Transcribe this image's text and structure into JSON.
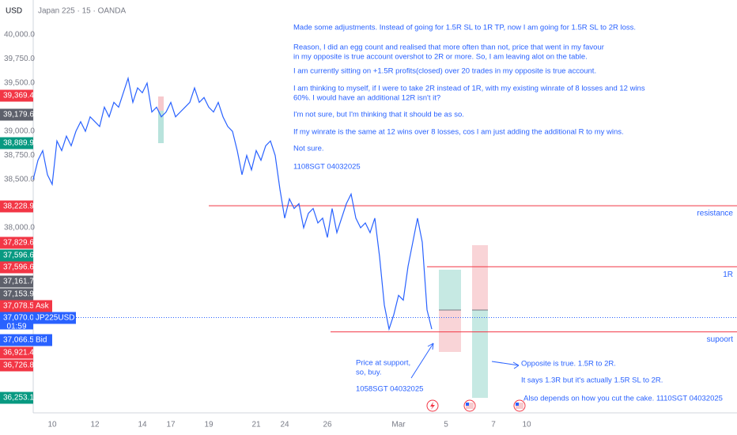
{
  "header": {
    "currency": "USD",
    "symbol": "Japan 225 · 15 · OANDA"
  },
  "chart_data": {
    "type": "line",
    "categories": [
      null,
      null,
      null,
      null,
      "10",
      null,
      null,
      null,
      null,
      null,
      null,
      null,
      null,
      "12",
      null,
      null,
      null,
      null,
      null,
      null,
      null,
      null,
      null,
      "14",
      null,
      null,
      null,
      null,
      null,
      "17",
      null,
      null,
      null,
      null,
      null,
      null,
      null,
      "19",
      null,
      null,
      null,
      null,
      null,
      null,
      null,
      null,
      null,
      "21",
      null,
      null,
      null,
      null,
      null,
      "24",
      null,
      null,
      null,
      null,
      null,
      null,
      null,
      null,
      "26",
      null,
      null,
      null,
      null,
      null,
      null,
      null,
      null,
      null,
      null,
      null,
      null,
      null,
      null,
      "Mar",
      null,
      null,
      null,
      null,
      null,
      null,
      null,
      null,
      null,
      "5",
      null,
      null,
      null,
      null,
      null,
      null,
      null,
      null,
      null,
      "7",
      null,
      null,
      null,
      null,
      null,
      null,
      "10",
      null
    ],
    "series": [
      {
        "name": "JP225USD",
        "color": "#2962ff",
        "values": [
          38500,
          38700,
          38800,
          38550,
          38450,
          38900,
          38800,
          38950,
          38850,
          39000,
          39100,
          39000,
          39150,
          39100,
          39050,
          39250,
          39150,
          39300,
          39250,
          39400,
          39550,
          39300,
          39450,
          39400,
          39500,
          39200,
          39250,
          39150,
          39200,
          39300,
          39150,
          39200,
          39250,
          39300,
          39450,
          39300,
          39350,
          39250,
          39200,
          39300,
          39150,
          39050,
          39000,
          38800,
          38550,
          38750,
          38600,
          38800,
          38700,
          38850,
          38900,
          38750,
          38400,
          38100,
          38300,
          38200,
          38250,
          38000,
          38150,
          38200,
          38050,
          38100,
          37900,
          38200,
          37950,
          38100,
          38250,
          38350,
          38100,
          38000,
          38050,
          37950,
          38100,
          37700,
          37200,
          36950,
          37100,
          37300,
          37250,
          37600,
          37850,
          38100,
          37850,
          37150,
          36950,
          null,
          null,
          null,
          null,
          null,
          null,
          null,
          null,
          null,
          null,
          null,
          null,
          null,
          null,
          null,
          null,
          null,
          null,
          null,
          null,
          null
        ]
      }
    ],
    "ylim": [
      36082,
      40361
    ],
    "yticks": [
      {
        "value": 40000,
        "label": "40,000.0"
      },
      {
        "value": 39750,
        "label": "39,750.0"
      },
      {
        "value": 39500,
        "label": "39,500.0"
      },
      {
        "value": 39000,
        "label": "39,000.0"
      },
      {
        "value": 38750,
        "label": "38,750.0"
      },
      {
        "value": 38500,
        "label": "38,500.0"
      },
      {
        "value": 38000,
        "label": "38,000.0"
      }
    ],
    "price_labels": [
      {
        "label": "39,369.4",
        "color": "#f23645"
      },
      {
        "label": "39,179.6",
        "color": "#5d606b"
      },
      {
        "label": "38,889.9",
        "color": "#089981"
      },
      {
        "label": "38,228.9",
        "color": "#f23645"
      },
      {
        "label": "37,829.6",
        "color": "#f23645"
      },
      {
        "label": "37,596.6",
        "color": "#089981"
      },
      {
        "label": "37,596.6",
        "color": "#f23645"
      },
      {
        "label": "37,161.7",
        "color": "#5d606b"
      },
      {
        "label": "37,153.9",
        "color": "#5d606b"
      },
      {
        "label": "37,078.5",
        "color": "#f23645",
        "tag": "Ask"
      },
      {
        "label": "37,070.0",
        "color": "#2962ff",
        "tag": "JP225USD",
        "sub": "01:59"
      },
      {
        "label": "37,066.5",
        "color": "#2962ff",
        "tag": "Bid"
      },
      {
        "label": "36,921.4",
        "color": "#f23645"
      },
      {
        "label": "36,726.8",
        "color": "#f23645"
      },
      {
        "label": "36,253.1",
        "color": "#089981"
      }
    ],
    "levels": [
      {
        "name": "resistance",
        "value": 38228.9,
        "color": "#f23645"
      },
      {
        "name": "1R",
        "value": 37596.6,
        "color": "#f23645"
      },
      {
        "name": "supoort",
        "value": 36921.4,
        "color": "#f23645"
      }
    ],
    "current_price": 37070.0
  },
  "notes": [
    "Made some adjustments. Instead of going for 1.5R SL to 1R TP, now I am going for 1.5R SL to 2R loss.",
    "Reason, I did an egg count and realised that more often than not, price that went in my favour",
    "in my opposite is true account overshot to 2R or more. So, I am leaving alot on the table.",
    "I am currently sitting on +1.5R profits(closed) over 20 trades in my opposite is true account.",
    "I am thinking to myself, if I were to take 2R instead of 1R, with my existing winrate of 8 losses and 12 wins",
    "60%. I would have an additional 12R isn't it?",
    "I'm not sure, but I'm thinking that it should be as so.",
    "If my winrate is the same at 12 wins over 8 losses, cos I am just adding the additional R to my wins.",
    "Not sure.",
    "1108SGT 04032025"
  ],
  "support_note": [
    "Price at support,",
    "so, buy.",
    "1058SGT 04032025"
  ],
  "opposite_note": [
    "Opposite is true. 1.5R to 2R.",
    "It says 1.3R but it's actually 1.5R SL to 2R.",
    "Also depends on how you cut the cake. 1110SGT 04032025"
  ]
}
